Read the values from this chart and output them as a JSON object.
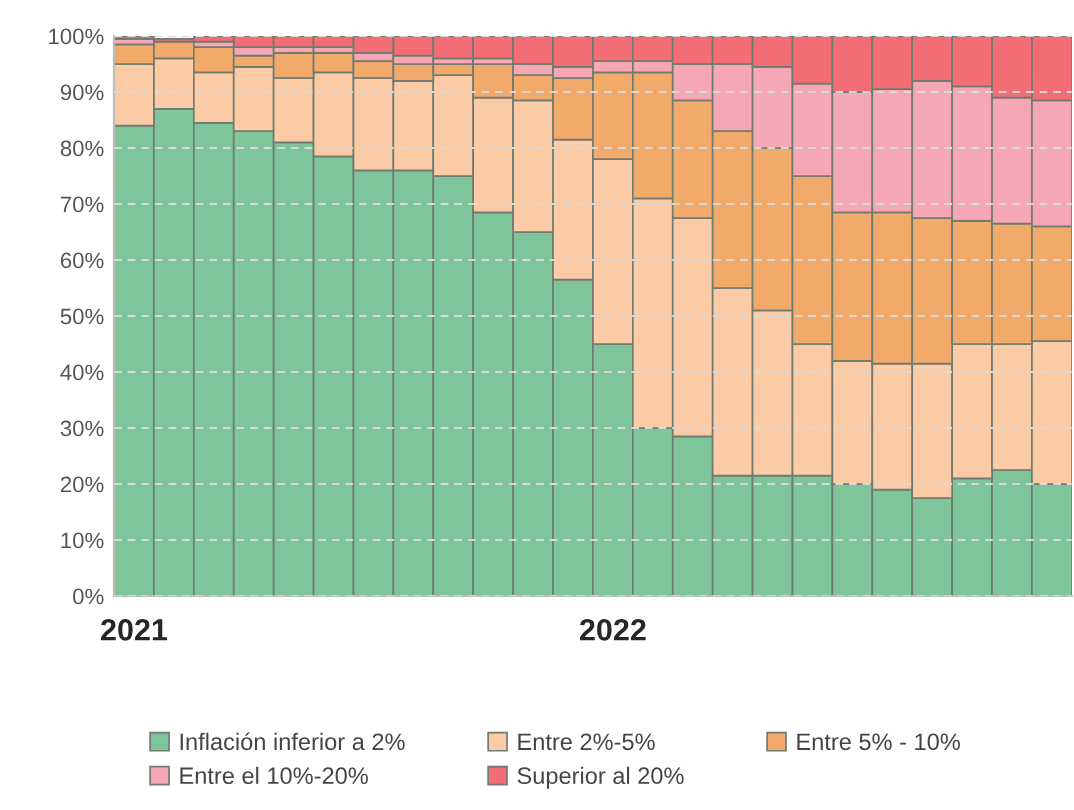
{
  "chart_data": {
    "type": "bar",
    "stacked": true,
    "categories": [
      "2021",
      null,
      null,
      null,
      null,
      null,
      null,
      null,
      null,
      null,
      null,
      null,
      "2022",
      null,
      null,
      null,
      null,
      null,
      null,
      null,
      null,
      null,
      null,
      null
    ],
    "series": [
      {
        "name": "Inflación inferior a 2%",
        "color": "#7fc59a",
        "values": [
          84,
          87,
          84.5,
          83,
          81,
          78.5,
          76,
          76,
          75,
          68.5,
          65,
          56.5,
          45,
          30,
          28.5,
          21.5,
          21.5,
          21.5,
          20,
          19,
          17.5,
          21,
          22.5,
          20
        ]
      },
      {
        "name": "Entre 2%-5%",
        "color": "#fbcba6",
        "values": [
          11,
          9,
          9,
          11.5,
          11.5,
          15,
          16.5,
          16,
          18,
          20.5,
          23.5,
          25,
          33,
          41,
          39,
          33.5,
          29.5,
          23.5,
          22,
          22.5,
          24,
          24,
          22.5,
          25.5
        ]
      },
      {
        "name": "Entre 5% - 10%",
        "color": "#f2aa6b",
        "values": [
          3.5,
          3,
          4.5,
          2,
          4.5,
          3.5,
          3,
          3,
          2,
          6,
          4.5,
          11,
          15.5,
          22.5,
          21,
          28,
          29,
          30,
          26.5,
          27,
          26,
          22,
          21.5,
          20.5
        ]
      },
      {
        "name": "Entre el 10%-20%",
        "color": "#f5a8b4",
        "values": [
          1,
          null,
          1,
          1.5,
          1,
          1,
          1.5,
          1.5,
          1,
          1,
          2,
          2,
          2,
          2,
          6.5,
          12,
          14.5,
          16.5,
          21.5,
          22,
          24.5,
          24,
          22.5,
          22.5
        ]
      },
      {
        "name": "Superior al 20%",
        "color": "#f26d74",
        "values": [
          0.5,
          0.5,
          1,
          2,
          2,
          2,
          3,
          3.5,
          4,
          4,
          5,
          5.5,
          4.5,
          4.5,
          5,
          5,
          5.5,
          8.5,
          10,
          9.5,
          8,
          9,
          11,
          11.5
        ]
      }
    ],
    "ylim": [
      0,
      100
    ],
    "yticks": [
      {
        "value": 0,
        "label": "0%"
      },
      {
        "value": 10,
        "label": "10%"
      },
      {
        "value": 20,
        "label": "20%"
      },
      {
        "value": 30,
        "label": "30%"
      },
      {
        "value": 40,
        "label": "40%"
      },
      {
        "value": 50,
        "label": "50%"
      },
      {
        "value": 60,
        "label": "60%"
      },
      {
        "value": 70,
        "label": "70%"
      },
      {
        "value": 80,
        "label": "80%"
      },
      {
        "value": 90,
        "label": "90%"
      },
      {
        "value": 100,
        "label": "100%"
      }
    ],
    "grid": "y",
    "legend": "bottom"
  }
}
